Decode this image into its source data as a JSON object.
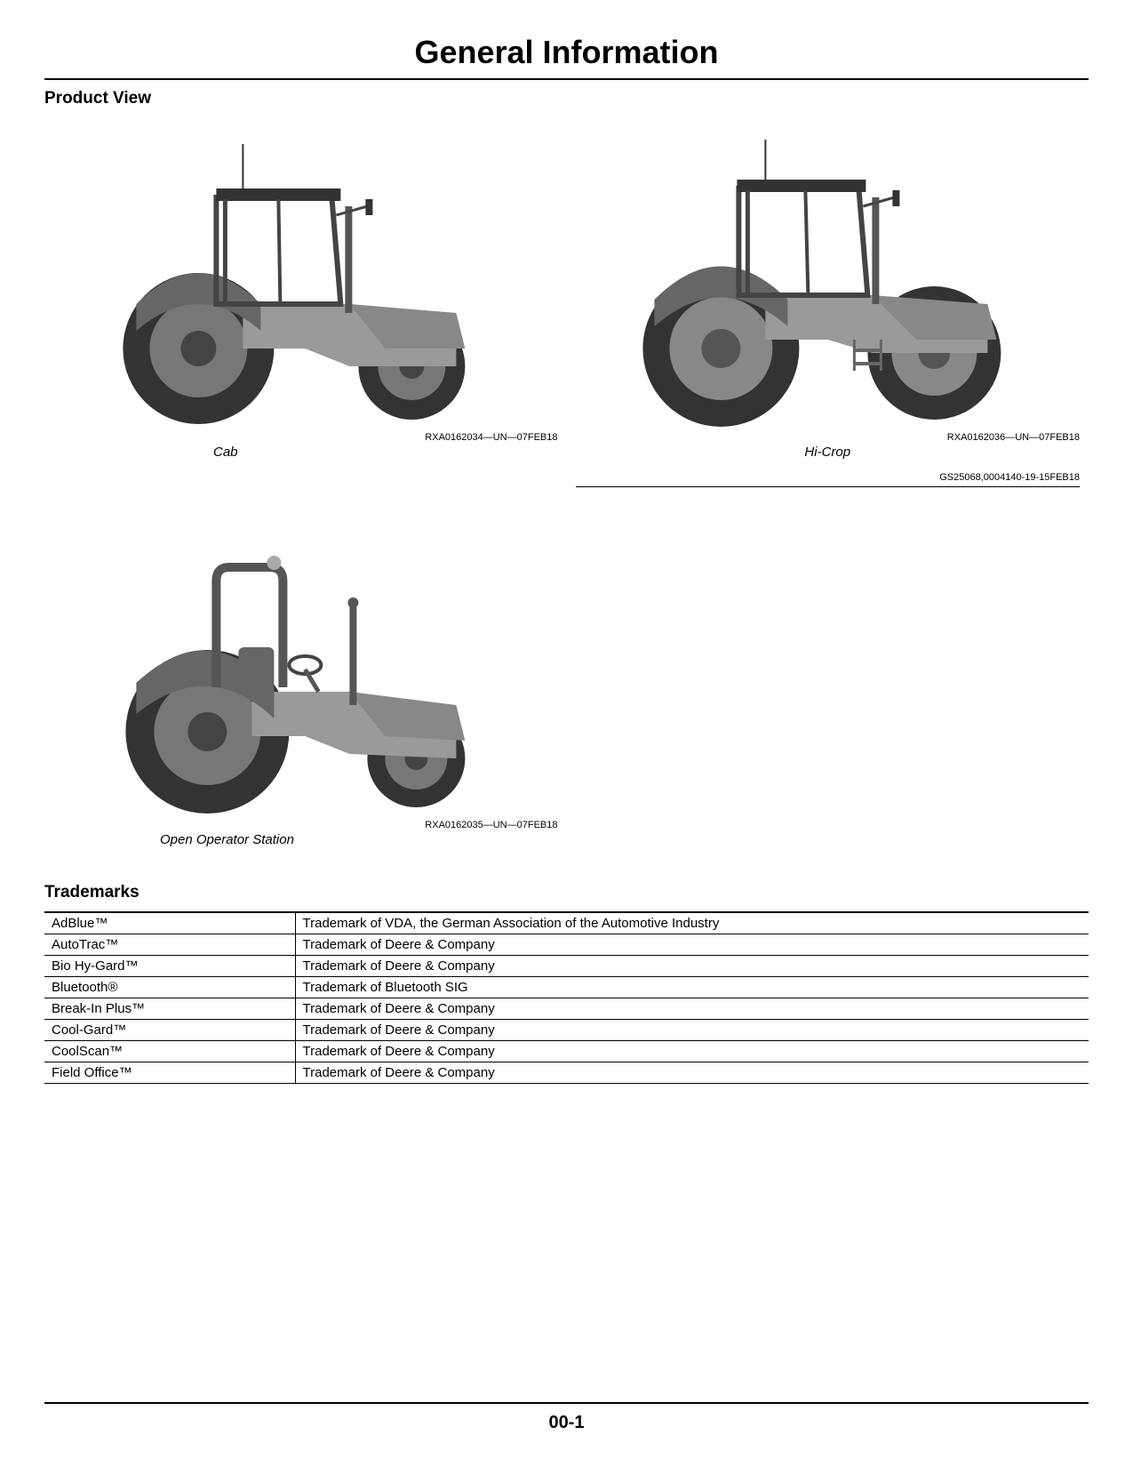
{
  "page": {
    "title": "General Information",
    "footer_page_number": "00-1"
  },
  "product_view": {
    "heading": "Product View",
    "items": [
      {
        "caption": "Cab",
        "image_id": "RXA0162034—UN—07FEB18"
      },
      {
        "caption": "Hi-Crop",
        "image_id": "RXA0162036—UN—07FEB18",
        "doc_id": "GS25068,0004140-19-15FEB18"
      },
      {
        "caption": "Open Operator Station",
        "image_id": "RXA0162035—UN—07FEB18"
      }
    ]
  },
  "trademarks": {
    "heading": "Trademarks",
    "rows": [
      {
        "name": "AdBlue™",
        "desc": "Trademark of VDA, the German Association of the Automotive Industry"
      },
      {
        "name": "AutoTrac™",
        "desc": "Trademark of Deere & Company"
      },
      {
        "name": "Bio Hy-Gard™",
        "desc": "Trademark of Deere & Company"
      },
      {
        "name": "Bluetooth®",
        "desc": "Trademark of Bluetooth SIG"
      },
      {
        "name": "Break-In Plus™",
        "desc": "Trademark of Deere & Company"
      },
      {
        "name": "Cool-Gard™",
        "desc": "Trademark of Deere & Company"
      },
      {
        "name": "CoolScan™",
        "desc": "Trademark of Deere & Company"
      },
      {
        "name": "Field Office™",
        "desc": "Trademark of Deere & Company"
      }
    ]
  },
  "style": {
    "background_color": "#ffffff",
    "text_color": "#000000",
    "border_color": "#000000",
    "title_fontsize": 36,
    "heading_fontsize": 19,
    "body_fontsize": 15,
    "small_fontsize": 11,
    "tractor_fill": "#9a9a9a",
    "tractor_dark": "#555555",
    "tire_fill": "#333333"
  }
}
